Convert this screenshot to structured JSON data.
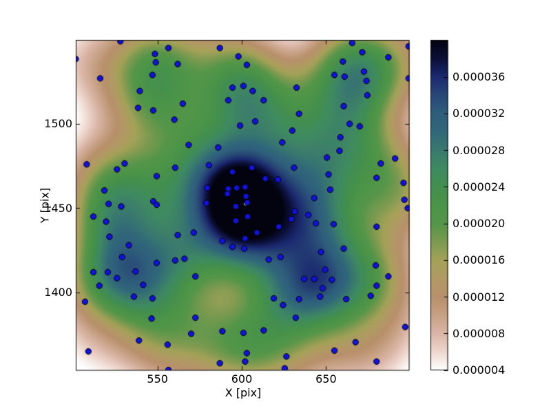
{
  "figure": {
    "background": "#ffffff"
  },
  "chart_data": {
    "type": "scatter",
    "subtype": "kde-density-map-with-scatter-overlay",
    "title": "",
    "xlabel": "X [pix]",
    "ylabel": "Y [pix]",
    "xlim": [
      501.5,
      699.5
    ],
    "ylim": [
      1353.8,
      1549.6
    ],
    "grid": false,
    "legend": "none",
    "x_ticks": {
      "values": [
        550,
        600,
        650
      ],
      "labels": [
        "550",
        "600",
        "650"
      ]
    },
    "y_ticks": {
      "values": [
        1400,
        1450,
        1500
      ],
      "labels": [
        "1400",
        "1450",
        "1500"
      ]
    },
    "marker": {
      "shape": "circle",
      "fill": "#1212dd",
      "edge": "#000000",
      "radius_px": 4.2
    },
    "density": {
      "colormap_name": "earth-like: white-tan-olive-green-teal-blue-black (low to high)",
      "vmin": 4e-06,
      "vmax": 4e-05,
      "bandwidth_data_units": 18,
      "peak": {
        "x": 602.2,
        "y": 1452.5,
        "marker_color": "#ffffff"
      },
      "colormap_stops_microunits": [
        [
          4,
          "#ffffff"
        ],
        [
          6,
          "#eed7cd"
        ],
        [
          8,
          "#dab5a6"
        ],
        [
          10,
          "#c7a184"
        ],
        [
          12,
          "#b8906c"
        ],
        [
          14,
          "#b29a64"
        ],
        [
          16,
          "#a3a258"
        ],
        [
          18,
          "#7a9a50"
        ],
        [
          20,
          "#559649"
        ],
        [
          22,
          "#4b9448"
        ],
        [
          24,
          "#438f4e"
        ],
        [
          26,
          "#3f8a62"
        ],
        [
          28,
          "#3a7a6e"
        ],
        [
          30,
          "#31687a"
        ],
        [
          32,
          "#2f5e7c"
        ],
        [
          34,
          "#284876"
        ],
        [
          36,
          "#1c2a70"
        ],
        [
          38,
          "#0c1038"
        ],
        [
          40,
          "#03030f"
        ]
      ]
    },
    "colorbar": {
      "position": "right",
      "ticks": {
        "values": [
          3.6e-05,
          3.2e-05,
          2.8e-05,
          2.4e-05,
          2e-05,
          1.6e-05,
          1.2e-05,
          8e-06,
          4e-06
        ],
        "labels": [
          "0.000036",
          "0.000032",
          "0.000028",
          "0.000024",
          "0.000020",
          "0.000016",
          "0.000012",
          "0.000008",
          "0.000004"
        ]
      }
    },
    "points": [
      [
        528,
        1549
      ],
      [
        556.5,
        1545
      ],
      [
        548.5,
        1541.5
      ],
      [
        549,
        1536.5
      ],
      [
        562,
        1535.5
      ],
      [
        501.5,
        1538.5
      ],
      [
        516,
        1527
      ],
      [
        547,
        1529
      ],
      [
        539.5,
        1519.5
      ],
      [
        538.5,
        1509.5
      ],
      [
        547.5,
        1508
      ],
      [
        565,
        1512
      ],
      [
        560,
        1502.5
      ],
      [
        508,
        1476
      ],
      [
        530.5,
        1476.5
      ],
      [
        526,
        1473
      ],
      [
        549.5,
        1469
      ],
      [
        560.5,
        1474
      ],
      [
        518.5,
        1460.5
      ],
      [
        547.5,
        1454
      ],
      [
        521,
        1452.5
      ],
      [
        528.5,
        1451
      ],
      [
        549.5,
        1452
      ],
      [
        587,
        1545
      ],
      [
        598,
        1540
      ],
      [
        603,
        1535
      ],
      [
        594.5,
        1521.5
      ],
      [
        601,
        1522.5
      ],
      [
        606.5,
        1519.5
      ],
      [
        613,
        1514
      ],
      [
        592,
        1514
      ],
      [
        608,
        1501.5
      ],
      [
        599,
        1499
      ],
      [
        630,
        1496
      ],
      [
        624,
        1489
      ],
      [
        568.5,
        1487.5
      ],
      [
        586,
        1486
      ],
      [
        580.5,
        1475.5
      ],
      [
        606,
        1474
      ],
      [
        594.5,
        1471.5
      ],
      [
        631,
        1474
      ],
      [
        614,
        1467.5
      ],
      [
        621.5,
        1467
      ],
      [
        579.5,
        1462
      ],
      [
        592,
        1461.5
      ],
      [
        597,
        1462
      ],
      [
        602,
        1462.5
      ],
      [
        591.5,
        1458.5
      ],
      [
        579,
        1453
      ],
      [
        603.3,
        1453.3
      ],
      [
        665.5,
        1548
      ],
      [
        671.5,
        1542.5
      ],
      [
        687,
        1539.5
      ],
      [
        660,
        1537
      ],
      [
        655,
        1529
      ],
      [
        661,
        1528
      ],
      [
        672.5,
        1531
      ],
      [
        674,
        1525.5
      ],
      [
        699,
        1546
      ],
      [
        699,
        1527
      ],
      [
        632.5,
        1521.5
      ],
      [
        674.5,
        1517
      ],
      [
        660.5,
        1510.5
      ],
      [
        634,
        1506
      ],
      [
        664,
        1500
      ],
      [
        670,
        1498.5
      ],
      [
        658.5,
        1492
      ],
      [
        658,
        1484
      ],
      [
        650.5,
        1480
      ],
      [
        682.5,
        1476.5
      ],
      [
        691,
        1479.5
      ],
      [
        651.5,
        1470
      ],
      [
        680,
        1468
      ],
      [
        696,
        1465
      ],
      [
        652.5,
        1461
      ],
      [
        643,
        1456
      ],
      [
        696.5,
        1455
      ],
      [
        512,
        1445
      ],
      [
        519.5,
        1442
      ],
      [
        521.5,
        1433
      ],
      [
        533,
        1428
      ],
      [
        529,
        1421
      ],
      [
        562,
        1434
      ],
      [
        549.5,
        1417.5
      ],
      [
        560.5,
        1419
      ],
      [
        566,
        1420
      ],
      [
        512,
        1412
      ],
      [
        520.5,
        1412
      ],
      [
        526,
        1408.5
      ],
      [
        537,
        1412.5
      ],
      [
        515.5,
        1404
      ],
      [
        541.5,
        1404.5
      ],
      [
        536,
        1397.5
      ],
      [
        547,
        1396.5
      ],
      [
        507,
        1394.5
      ],
      [
        546.5,
        1384.5
      ],
      [
        539,
        1371.5
      ],
      [
        556,
        1369
      ],
      [
        509,
        1365
      ],
      [
        556.5,
        1354
      ],
      [
        571.5,
        1435.5
      ],
      [
        588.5,
        1430.5
      ],
      [
        609,
        1435.5
      ],
      [
        622,
        1439
      ],
      [
        629.5,
        1443.5
      ],
      [
        616,
        1419.5
      ],
      [
        623,
        1421
      ],
      [
        572.5,
        1409.5
      ],
      [
        619,
        1396.5
      ],
      [
        624.5,
        1392.5
      ],
      [
        572.5,
        1385
      ],
      [
        632,
        1385
      ],
      [
        570,
        1375.5
      ],
      [
        588.5,
        1377
      ],
      [
        601,
        1376
      ],
      [
        613,
        1377.5
      ],
      [
        603,
        1364
      ],
      [
        626.5,
        1362
      ],
      [
        587,
        1358
      ],
      [
        602,
        1359
      ],
      [
        625.5,
        1355
      ],
      [
        596.5,
        1442.5
      ],
      [
        602,
        1432
      ],
      [
        594.5,
        1427
      ],
      [
        601.5,
        1426
      ],
      [
        596.5,
        1451
      ],
      [
        603.5,
        1445
      ],
      [
        631.5,
        1448
      ],
      [
        639.5,
        1446
      ],
      [
        644,
        1441
      ],
      [
        654.5,
        1440.5
      ],
      [
        680,
        1439
      ],
      [
        660.5,
        1426
      ],
      [
        647,
        1424
      ],
      [
        649.5,
        1413.5
      ],
      [
        679.5,
        1416
      ],
      [
        637,
        1408
      ],
      [
        643,
        1408
      ],
      [
        653.5,
        1407.5
      ],
      [
        687,
        1409.5
      ],
      [
        648,
        1402.5
      ],
      [
        680,
        1404
      ],
      [
        646.5,
        1397.5
      ],
      [
        634,
        1396
      ],
      [
        662,
        1396
      ],
      [
        676.5,
        1398
      ],
      [
        697,
        1379.5
      ],
      [
        667.5,
        1370.5
      ],
      [
        655,
        1365.5
      ],
      [
        680,
        1359
      ],
      [
        698.5,
        1450
      ],
      [
        602.5,
        1457
      ]
    ]
  }
}
